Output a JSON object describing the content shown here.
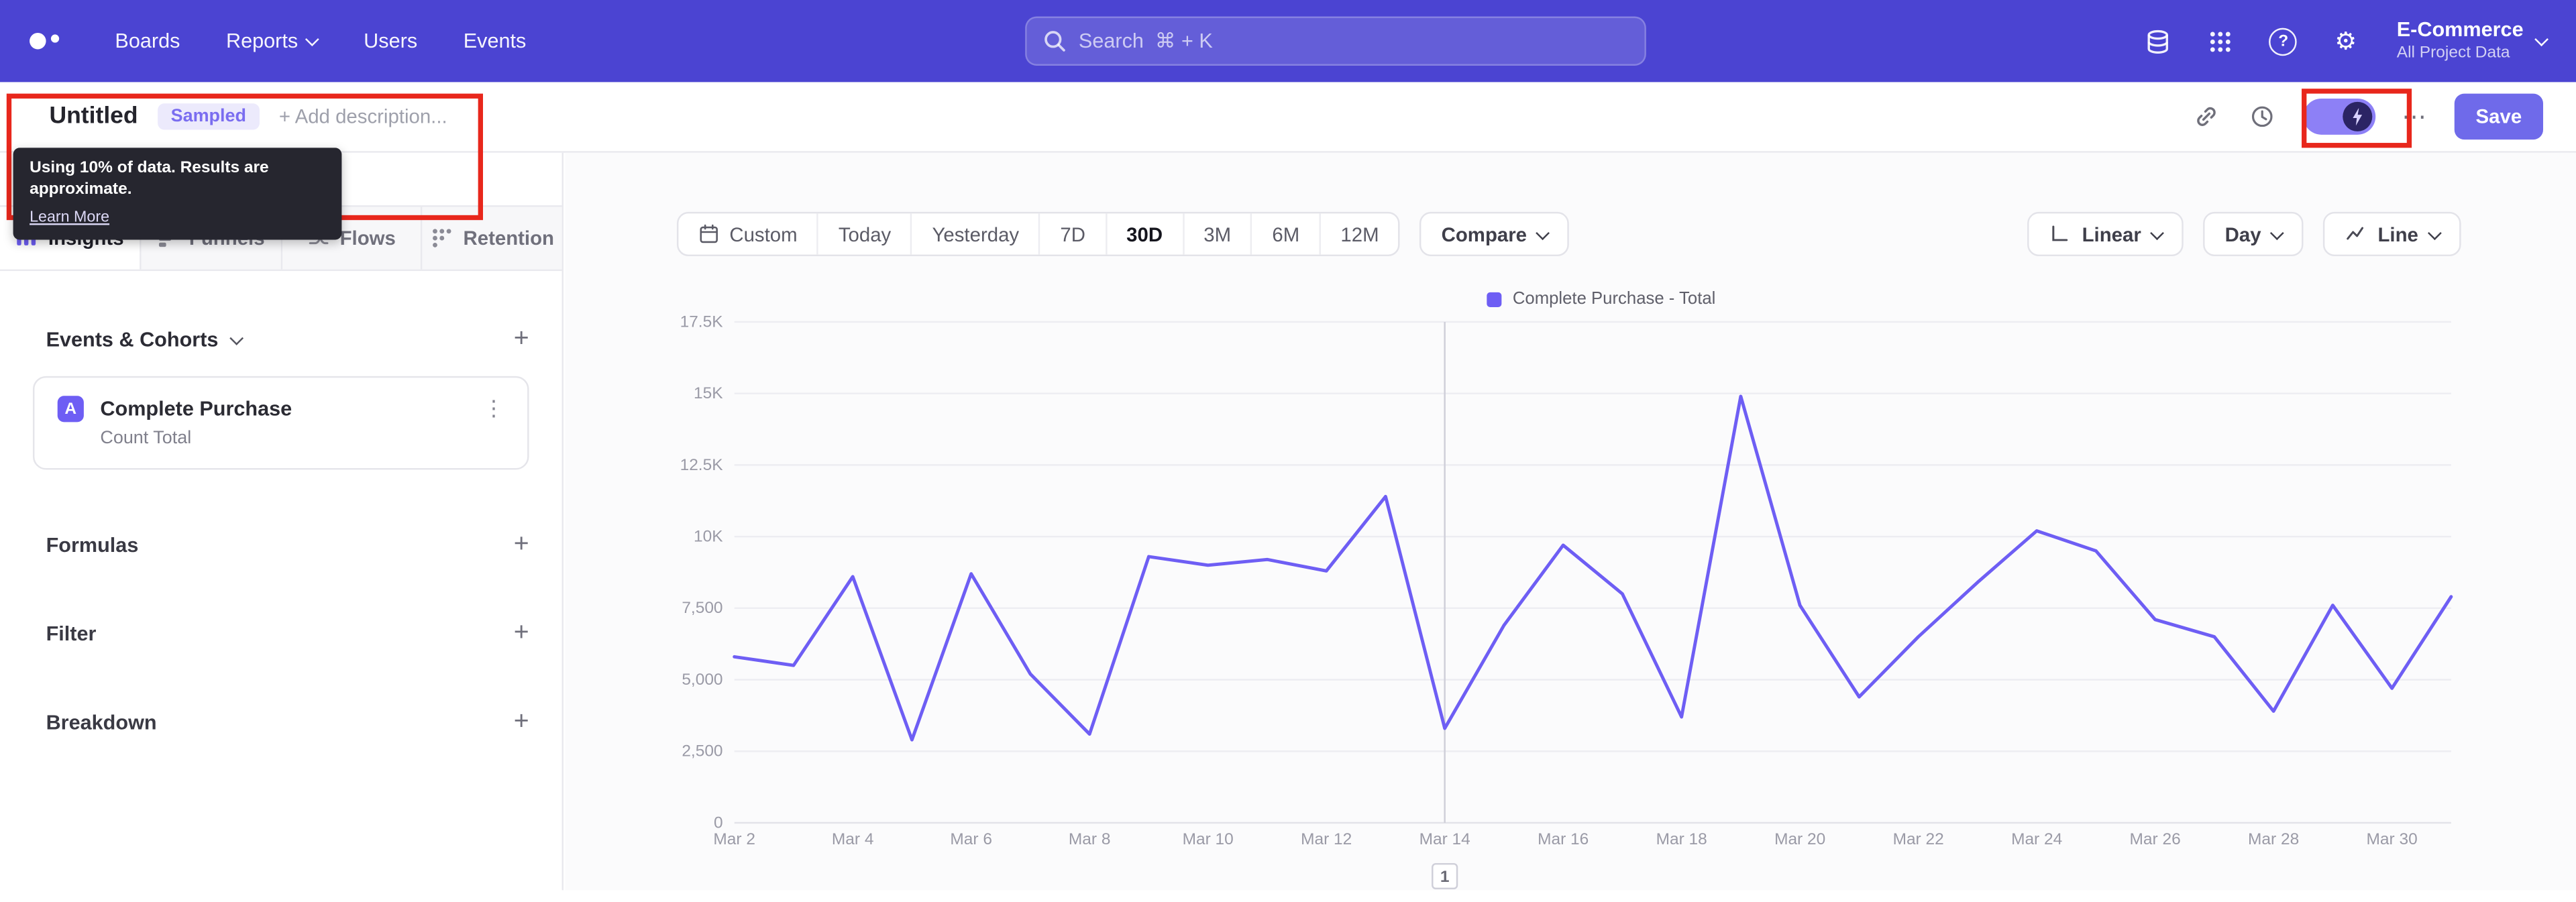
{
  "topnav": {
    "items": [
      "Boards",
      "Reports",
      "Users",
      "Events"
    ],
    "search_placeholder": "Search  ⌘ + K",
    "project_name": "E-Commerce",
    "project_subtitle": "All Project Data"
  },
  "header": {
    "title": "Untitled",
    "sampled_badge": "Sampled",
    "add_description": "+ Add description...",
    "save": "Save",
    "tooltip_text": "Using 10% of data. Results are approximate.",
    "tooltip_link": "Learn More"
  },
  "sidebar": {
    "tabs": [
      "Insights",
      "Funnels",
      "Flows",
      "Retention"
    ],
    "active_tab": "Insights",
    "events_header": "Events & Cohorts",
    "event_badge": "A",
    "event_name": "Complete Purchase",
    "event_metric": "Count Total",
    "sections": [
      "Formulas",
      "Filter",
      "Breakdown"
    ]
  },
  "controls": {
    "date_ranges": [
      "Custom",
      "Today",
      "Yesterday",
      "7D",
      "30D",
      "3M",
      "6M",
      "12M"
    ],
    "selected_range": "30D",
    "compare": "Compare",
    "scale": "Linear",
    "granularity": "Day",
    "chart_type": "Line"
  },
  "chart_data": {
    "type": "line",
    "legend": "Complete Purchase - Total",
    "line_color": "#6e5ef4",
    "grid": true,
    "legend_position": "top",
    "ylim": [
      0,
      17500
    ],
    "yticks": [
      0,
      2500,
      5000,
      7500,
      10000,
      12500,
      15000,
      17500
    ],
    "ytick_labels": [
      "0",
      "2,500",
      "5,000",
      "7,500",
      "10K",
      "12.5K",
      "15K",
      "17.5K"
    ],
    "x_tick_every": 2,
    "x": [
      "Mar 2",
      "Mar 3",
      "Mar 4",
      "Mar 5",
      "Mar 6",
      "Mar 7",
      "Mar 8",
      "Mar 9",
      "Mar 10",
      "Mar 11",
      "Mar 12",
      "Mar 13",
      "Mar 14",
      "Mar 15",
      "Mar 16",
      "Mar 17",
      "Mar 18",
      "Mar 19",
      "Mar 20",
      "Mar 21",
      "Mar 22",
      "Mar 23",
      "Mar 24",
      "Mar 25",
      "Mar 26",
      "Mar 27",
      "Mar 28",
      "Mar 29",
      "Mar 30",
      "Mar 31"
    ],
    "series": [
      {
        "name": "Complete Purchase - Total",
        "values": [
          5800,
          5500,
          8600,
          2900,
          8700,
          5200,
          3100,
          9300,
          9000,
          9200,
          8800,
          11400,
          3300,
          6900,
          9700,
          8000,
          3700,
          14900,
          7600,
          4400,
          6500,
          8400,
          10200,
          9500,
          7100,
          6500,
          3900,
          7600,
          4700,
          7900
        ]
      }
    ],
    "annotations": [
      {
        "x": "Mar 14",
        "label": "1"
      }
    ]
  }
}
